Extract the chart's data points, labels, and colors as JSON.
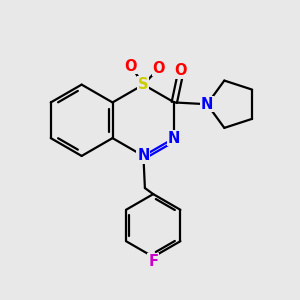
{
  "background_color": "#e8e8e8",
  "bond_color": "#000000",
  "atom_colors": {
    "S": "#cccc00",
    "N": "#0000ff",
    "O": "#ff0000",
    "F": "#cc00cc",
    "C": "#000000"
  },
  "line_width": 1.6,
  "font_size": 10.5
}
